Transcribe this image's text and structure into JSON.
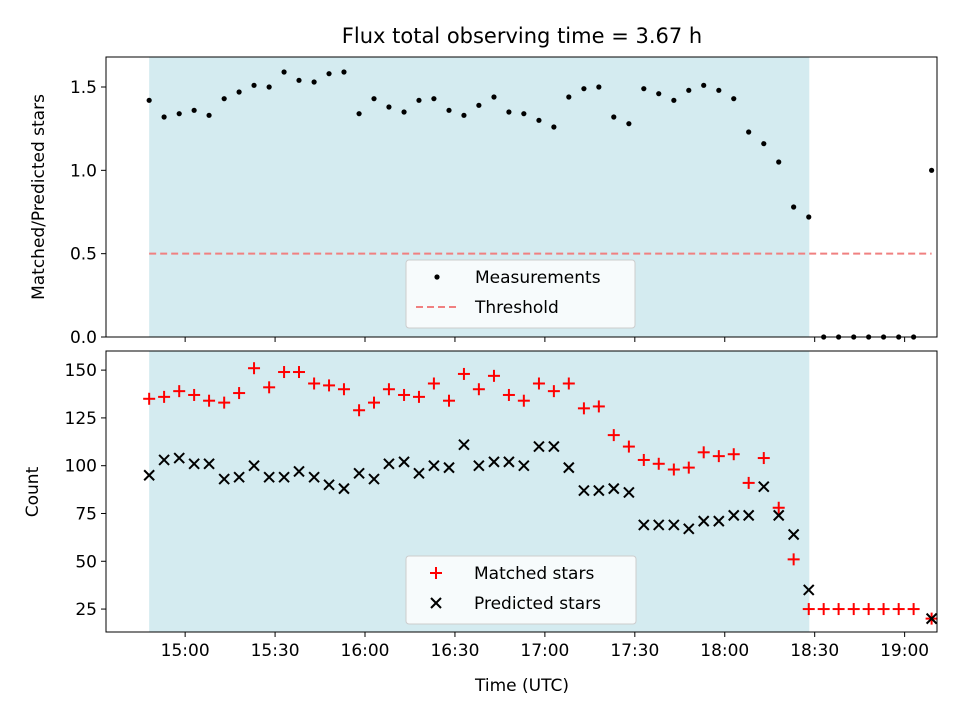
{
  "figure": {
    "title": "Flux total observing time = 3.67 h",
    "xlabel": "Time (UTC)",
    "x_tick_labels": [
      "15:00",
      "15:30",
      "16:00",
      "16:30",
      "17:00",
      "17:30",
      "18:00",
      "18:30",
      "19:00"
    ],
    "x_tick_hours": [
      15.0,
      15.5,
      16.0,
      16.5,
      17.0,
      17.5,
      18.0,
      18.5,
      19.0
    ],
    "xlim": [
      14.56,
      19.18
    ],
    "observing_window": [
      14.8,
      18.47
    ],
    "window_color": "#d4ebf0"
  },
  "chart_data": [
    {
      "type": "scatter",
      "panel": "top",
      "ylabel": "Matched/Predicted stars",
      "ylim": [
        0,
        1.68
      ],
      "y_ticks": [
        0.0,
        0.5,
        1.0,
        1.5
      ],
      "y_tick_labels": [
        "0.0",
        "0.5",
        "1.0",
        "1.5"
      ],
      "legend": [
        "Measurements",
        "Threshold"
      ],
      "legend_position": "lower-center",
      "threshold": {
        "name": "Threshold",
        "value": 0.5,
        "x_range": [
          14.8,
          19.15
        ],
        "color": "#f08080"
      },
      "series": [
        {
          "name": "Measurements",
          "color": "#000000",
          "x": [
            14.8,
            14.883,
            14.967,
            15.05,
            15.133,
            15.217,
            15.3,
            15.383,
            15.467,
            15.55,
            15.633,
            15.717,
            15.8,
            15.883,
            15.967,
            16.05,
            16.133,
            16.217,
            16.3,
            16.383,
            16.467,
            16.55,
            16.633,
            16.717,
            16.8,
            16.883,
            16.967,
            17.05,
            17.133,
            17.217,
            17.3,
            17.383,
            17.467,
            17.55,
            17.633,
            17.717,
            17.8,
            17.883,
            17.967,
            18.05,
            18.133,
            18.217,
            18.3,
            18.383,
            18.467,
            18.55,
            18.633,
            18.717,
            18.8,
            18.883,
            18.967,
            19.05,
            19.15
          ],
          "y": [
            1.42,
            1.32,
            1.34,
            1.36,
            1.33,
            1.43,
            1.47,
            1.51,
            1.5,
            1.59,
            1.54,
            1.53,
            1.58,
            1.59,
            1.34,
            1.43,
            1.38,
            1.35,
            1.42,
            1.43,
            1.36,
            1.33,
            1.39,
            1.44,
            1.35,
            1.34,
            1.3,
            1.26,
            1.44,
            1.49,
            1.5,
            1.32,
            1.28,
            1.49,
            1.46,
            1.42,
            1.48,
            1.51,
            1.48,
            1.43,
            1.23,
            1.16,
            1.05,
            0.78,
            0.72,
            0.0,
            0.0,
            0.0,
            0.0,
            0.0,
            0.0,
            0.0,
            1.0
          ]
        }
      ]
    },
    {
      "type": "scatter",
      "panel": "bottom",
      "ylabel": "Count",
      "ylim": [
        13,
        160
      ],
      "y_ticks": [
        25,
        50,
        75,
        100,
        125,
        150
      ],
      "y_tick_labels": [
        "25",
        "50",
        "75",
        "100",
        "125",
        "150"
      ],
      "legend": [
        "Matched stars",
        "Predicted stars"
      ],
      "legend_position": "lower-center",
      "series": [
        {
          "name": "Matched stars",
          "marker": "plus",
          "color": "#ff0000",
          "x": [
            14.8,
            14.883,
            14.967,
            15.05,
            15.133,
            15.217,
            15.3,
            15.383,
            15.467,
            15.55,
            15.633,
            15.717,
            15.8,
            15.883,
            15.967,
            16.05,
            16.133,
            16.217,
            16.3,
            16.383,
            16.467,
            16.55,
            16.633,
            16.717,
            16.8,
            16.883,
            16.967,
            17.05,
            17.133,
            17.217,
            17.3,
            17.383,
            17.467,
            17.55,
            17.633,
            17.717,
            17.8,
            17.883,
            17.967,
            18.05,
            18.133,
            18.217,
            18.3,
            18.383,
            18.467,
            18.55,
            18.633,
            18.717,
            18.8,
            18.883,
            18.967,
            19.05,
            19.15
          ],
          "y": [
            135,
            136,
            139,
            137,
            134,
            133,
            138,
            151,
            141,
            149,
            149,
            143,
            142,
            140,
            129,
            133,
            140,
            137,
            136,
            143,
            134,
            148,
            140,
            147,
            137,
            134,
            143,
            139,
            143,
            130,
            131,
            116,
            110,
            103,
            101,
            98,
            99,
            107,
            105,
            106,
            91,
            104,
            78,
            51,
            25,
            25,
            25,
            25,
            25,
            25,
            25,
            25,
            20
          ]
        },
        {
          "name": "Predicted stars",
          "marker": "x",
          "color": "#000000",
          "x": [
            14.8,
            14.883,
            14.967,
            15.05,
            15.133,
            15.217,
            15.3,
            15.383,
            15.467,
            15.55,
            15.633,
            15.717,
            15.8,
            15.883,
            15.967,
            16.05,
            16.133,
            16.217,
            16.3,
            16.383,
            16.467,
            16.55,
            16.633,
            16.717,
            16.8,
            16.883,
            16.967,
            17.05,
            17.133,
            17.217,
            17.3,
            17.383,
            17.467,
            17.55,
            17.633,
            17.717,
            17.8,
            17.883,
            17.967,
            18.05,
            18.133,
            18.217,
            18.3,
            18.383,
            18.467,
            19.15
          ],
          "y": [
            95,
            103,
            104,
            101,
            101,
            93,
            94,
            100,
            94,
            94,
            97,
            94,
            90,
            88,
            96,
            93,
            101,
            102,
            96,
            100,
            99,
            111,
            100,
            102,
            102,
            100,
            110,
            110,
            99,
            87,
            87,
            88,
            86,
            69,
            69,
            69,
            67,
            71,
            71,
            74,
            74,
            89,
            74,
            64,
            35,
            20
          ]
        }
      ]
    }
  ]
}
